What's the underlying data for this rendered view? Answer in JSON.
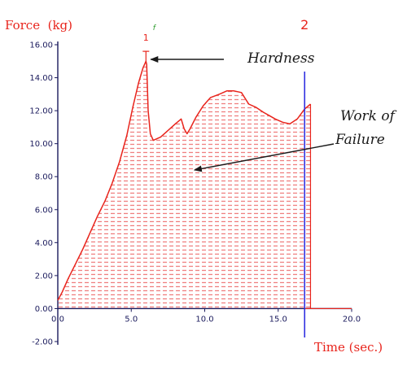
{
  "chart_data": {
    "type": "area",
    "ylabel": "Force  (kg)",
    "xlabel": "Time (sec.)",
    "xlim": [
      0,
      20
    ],
    "ylim": [
      -2,
      16
    ],
    "x_ticks": [
      0,
      5,
      10,
      15,
      20
    ],
    "x_tick_labels": [
      "0.0",
      "5.0",
      "10.0",
      "15.0",
      "20.0"
    ],
    "y_ticks": [
      -2,
      0,
      2,
      4,
      6,
      8,
      10,
      12,
      14,
      16
    ],
    "y_tick_labels": [
      "-2.00",
      "0.00",
      "2.00",
      "4.00",
      "6.00",
      "8.00",
      "10.00",
      "12.00",
      "14.00",
      "16.00"
    ],
    "grid": false,
    "fill": "hatched",
    "colors": {
      "series": "#e8241c",
      "axis": "#1a1a5c",
      "marker_line": "#3030e0",
      "hatch": "#f08080"
    },
    "series": [
      {
        "x": [
          0,
          0.3,
          0.7,
          1.2,
          1.7,
          2.2,
          2.7,
          3.2,
          3.7,
          4.2,
          4.7,
          5.1,
          5.5,
          5.8,
          6.0,
          6.05,
          6.15,
          6.3,
          6.5,
          7.0,
          7.5,
          8.0,
          8.4,
          8.6,
          8.8,
          9.0,
          9.4,
          9.9,
          10.4,
          11.0,
          11.5,
          12.0,
          12.5,
          13.0,
          13.5,
          14.0,
          14.4,
          14.8,
          15.3,
          15.8,
          16.3,
          16.8,
          17.2
        ],
        "y": [
          0.5,
          1.0,
          1.8,
          2.7,
          3.6,
          4.6,
          5.6,
          6.5,
          7.6,
          8.9,
          10.5,
          12.2,
          13.7,
          14.6,
          15.0,
          14.8,
          12.0,
          10.6,
          10.2,
          10.4,
          10.8,
          11.2,
          11.5,
          10.9,
          10.6,
          10.9,
          11.6,
          12.3,
          12.8,
          13.0,
          13.2,
          13.2,
          13.1,
          12.4,
          12.2,
          11.9,
          11.7,
          11.5,
          11.3,
          11.2,
          11.5,
          12.1,
          12.4
        ]
      }
    ],
    "vertical_markers": [
      {
        "x": 6.0,
        "label": "1",
        "flag": "f"
      },
      {
        "x": 16.8,
        "label": "2"
      }
    ],
    "annotations": [
      {
        "text": "Hardness",
        "points_to": {
          "x": 6.0,
          "y": 15.0
        }
      },
      {
        "text_lines": [
          "Work of",
          "Failure"
        ],
        "points_to": {
          "x": 9.3,
          "y": 8.4
        }
      }
    ]
  }
}
